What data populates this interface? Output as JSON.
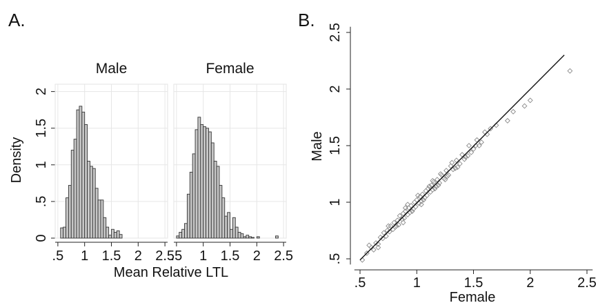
{
  "panel_labels": {
    "a": "A.",
    "b": "B."
  },
  "chart_data": [
    {
      "type": "bar",
      "panel": "A.",
      "xlabel": "Mean Relative LTL",
      "ylabel": "Density",
      "xlim": [
        0.45,
        2.55
      ],
      "ylim": [
        0,
        2.1
      ],
      "xticks": [
        0.5,
        1,
        1.5,
        2,
        2.5
      ],
      "xtick_labels": [
        ".5",
        "1",
        "1.5",
        "2",
        "2.5"
      ],
      "yticks": [
        0,
        0.5,
        1,
        1.5,
        2
      ],
      "ytick_labels": [
        "0",
        ".5",
        "1",
        "1.5",
        "2"
      ],
      "grid": true,
      "bin_width": 0.05,
      "bar_color": "#c8c8c8",
      "panels": [
        {
          "title": "Male",
          "bin_starts": [
            0.55,
            0.6,
            0.65,
            0.7,
            0.75,
            0.8,
            0.85,
            0.9,
            0.95,
            1.0,
            1.05,
            1.1,
            1.15,
            1.2,
            1.25,
            1.3,
            1.35,
            1.4,
            1.45,
            1.5,
            1.55,
            1.6,
            1.65
          ],
          "values": [
            0.14,
            0.15,
            0.55,
            0.72,
            1.2,
            1.35,
            1.75,
            1.8,
            1.72,
            1.55,
            1.05,
            0.98,
            0.95,
            0.68,
            0.52,
            0.52,
            0.28,
            0.15,
            0.04,
            0.12,
            0.08,
            0.1,
            0.05
          ]
        },
        {
          "title": "Female",
          "bin_starts": [
            0.5,
            0.55,
            0.6,
            0.65,
            0.7,
            0.75,
            0.8,
            0.85,
            0.9,
            0.95,
            1.0,
            1.05,
            1.1,
            1.15,
            1.2,
            1.25,
            1.3,
            1.35,
            1.4,
            1.45,
            1.5,
            1.55,
            1.6,
            1.65,
            1.7,
            1.75,
            1.8,
            1.85,
            1.9,
            2.0,
            2.35
          ],
          "values": [
            0.03,
            0.08,
            0.12,
            0.2,
            0.6,
            0.9,
            1.15,
            1.48,
            1.65,
            1.55,
            1.52,
            1.5,
            1.45,
            1.3,
            1.05,
            0.98,
            0.72,
            0.55,
            0.3,
            0.35,
            0.12,
            0.28,
            0.15,
            0.08,
            0.06,
            0.02,
            0.04,
            0.02,
            0.01,
            0.02,
            0.03
          ]
        }
      ]
    },
    {
      "type": "scatter",
      "panel": "B.",
      "xlabel": "Female",
      "ylabel": "Male",
      "xlim": [
        0.45,
        2.55
      ],
      "ylim": [
        0.45,
        2.55
      ],
      "xticks": [
        0.5,
        1,
        1.5,
        2,
        2.5
      ],
      "xtick_labels": [
        ".5",
        "1",
        "1.5",
        "2",
        "2.5"
      ],
      "yticks": [
        0.5,
        1,
        1.5,
        2,
        2.5
      ],
      "ytick_labels": [
        ".5",
        "1",
        "1.5",
        "2",
        "2.5"
      ],
      "grid": false,
      "marker": "hollow-diamond",
      "fit_line": {
        "x": [
          0.5,
          2.3
        ],
        "y": [
          0.49,
          2.3
        ]
      },
      "points": [
        [
          0.52,
          0.49
        ],
        [
          0.56,
          0.55
        ],
        [
          0.6,
          0.6
        ],
        [
          0.62,
          0.58
        ],
        [
          0.64,
          0.64
        ],
        [
          0.66,
          0.63
        ],
        [
          0.68,
          0.69
        ],
        [
          0.7,
          0.68
        ],
        [
          0.71,
          0.73
        ],
        [
          0.73,
          0.7
        ],
        [
          0.74,
          0.75
        ],
        [
          0.76,
          0.74
        ],
        [
          0.77,
          0.79
        ],
        [
          0.79,
          0.76
        ],
        [
          0.8,
          0.82
        ],
        [
          0.81,
          0.78
        ],
        [
          0.83,
          0.84
        ],
        [
          0.84,
          0.8
        ],
        [
          0.85,
          0.88
        ],
        [
          0.87,
          0.85
        ],
        [
          0.88,
          0.9
        ],
        [
          0.89,
          0.86
        ],
        [
          0.9,
          0.92
        ],
        [
          0.92,
          0.89
        ],
        [
          0.93,
          0.95
        ],
        [
          0.94,
          0.91
        ],
        [
          0.95,
          0.97
        ],
        [
          0.97,
          0.94
        ],
        [
          0.98,
          1.0
        ],
        [
          0.99,
          0.96
        ],
        [
          1.0,
          1.02
        ],
        [
          1.02,
          0.99
        ],
        [
          1.03,
          1.05
        ],
        [
          1.04,
          1.01
        ],
        [
          1.05,
          1.07
        ],
        [
          1.07,
          1.04
        ],
        [
          1.08,
          1.1
        ],
        [
          1.09,
          1.06
        ],
        [
          1.1,
          1.12
        ],
        [
          1.12,
          1.09
        ],
        [
          1.13,
          1.15
        ],
        [
          1.14,
          1.11
        ],
        [
          1.15,
          1.18
        ],
        [
          1.17,
          1.14
        ],
        [
          1.18,
          1.2
        ],
        [
          1.2,
          1.17
        ],
        [
          1.22,
          1.24
        ],
        [
          1.24,
          1.21
        ],
        [
          1.26,
          1.28
        ],
        [
          1.28,
          1.24
        ],
        [
          1.3,
          1.32
        ],
        [
          1.32,
          1.29
        ],
        [
          1.35,
          1.37
        ],
        [
          1.38,
          1.34
        ],
        [
          1.4,
          1.42
        ],
        [
          1.43,
          1.4
        ],
        [
          1.46,
          1.5
        ],
        [
          1.5,
          1.47
        ],
        [
          1.53,
          1.55
        ],
        [
          1.57,
          1.53
        ],
        [
          1.6,
          1.62
        ],
        [
          1.65,
          1.65
        ],
        [
          1.62,
          1.6
        ],
        [
          1.7,
          1.68
        ],
        [
          1.8,
          1.72
        ],
        [
          1.85,
          1.8
        ],
        [
          1.95,
          1.85
        ],
        [
          2.0,
          1.9
        ],
        [
          2.35,
          2.16
        ],
        [
          0.58,
          0.62
        ],
        [
          0.66,
          0.6
        ],
        [
          0.75,
          0.79
        ],
        [
          0.82,
          0.79
        ],
        [
          0.9,
          0.95
        ],
        [
          0.96,
          0.92
        ],
        [
          1.01,
          1.06
        ],
        [
          1.06,
          1.02
        ],
        [
          1.11,
          1.14
        ],
        [
          1.16,
          1.12
        ],
        [
          1.21,
          1.25
        ],
        [
          1.25,
          1.2
        ],
        [
          1.31,
          1.35
        ],
        [
          1.36,
          1.31
        ],
        [
          1.45,
          1.41
        ],
        [
          1.55,
          1.5
        ],
        [
          0.88,
          0.82
        ],
        [
          0.92,
          0.98
        ],
        [
          1.04,
          0.98
        ],
        [
          1.14,
          1.19
        ],
        [
          1.19,
          1.15
        ],
        [
          1.27,
          1.23
        ],
        [
          1.34,
          1.3
        ],
        [
          1.42,
          1.38
        ],
        [
          1.48,
          1.44
        ],
        [
          1.52,
          1.5
        ]
      ]
    }
  ]
}
